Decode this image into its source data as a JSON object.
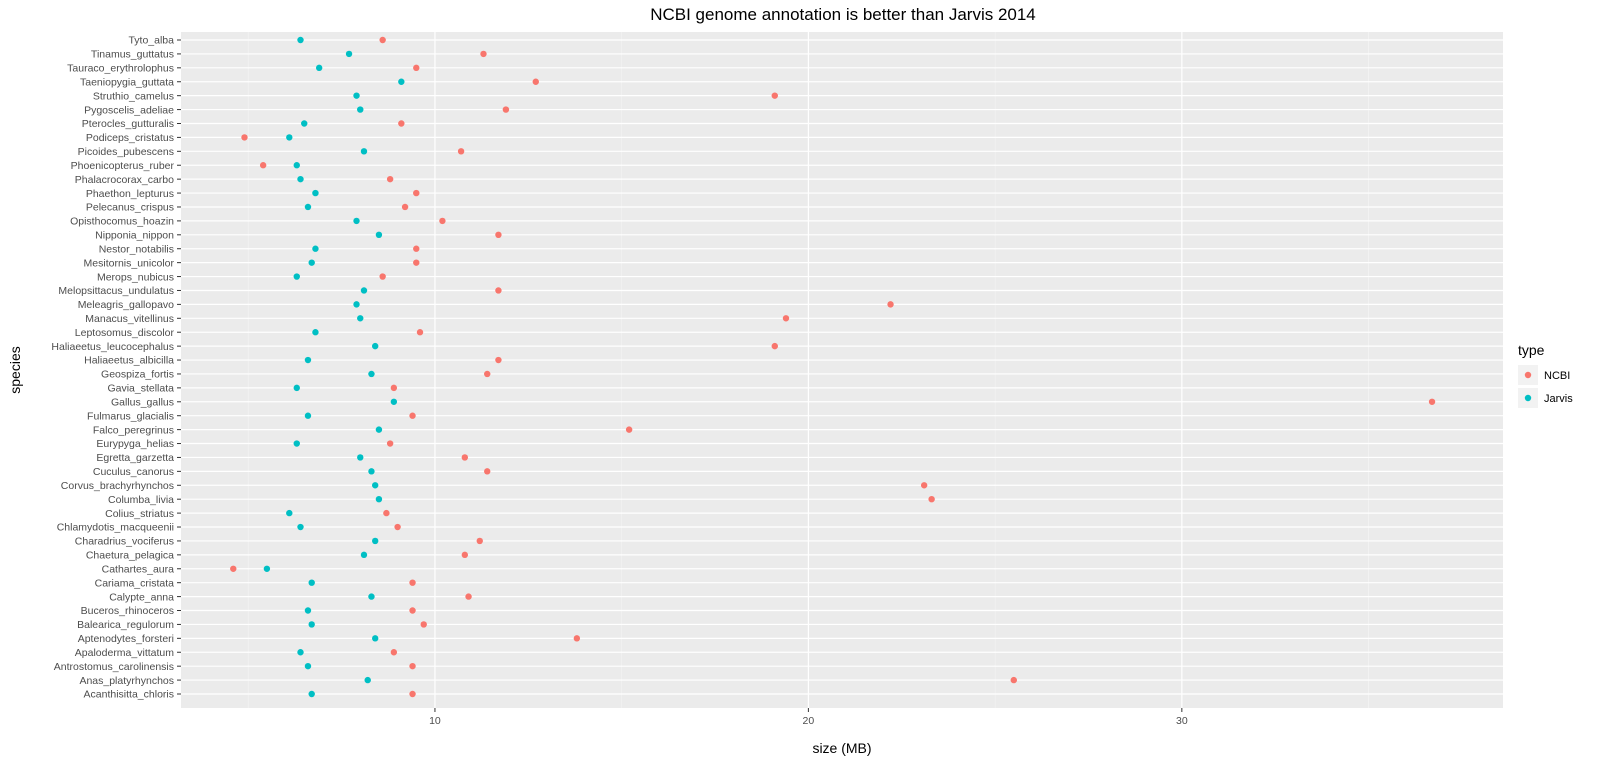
{
  "chart_data": {
    "type": "scatter",
    "title": "NCBI genome annotation is better than Jarvis 2014",
    "xlabel": "size (MB)",
    "ylabel": "species",
    "xlim": [
      3.2,
      38.6
    ],
    "x_ticks": [
      10,
      20,
      30
    ],
    "x_tick_labels": [
      "10",
      "20",
      "30"
    ],
    "grid": true,
    "legend": {
      "title": "type",
      "position": "right",
      "entries": [
        {
          "name": "NCBI",
          "color": "#F8766D"
        },
        {
          "name": "Jarvis",
          "color": "#00BFC4"
        }
      ]
    },
    "categories": [
      "Tyto_alba",
      "Tinamus_guttatus",
      "Tauraco_erythrolophus",
      "Taeniopygia_guttata",
      "Struthio_camelus",
      "Pygoscelis_adeliae",
      "Pterocles_gutturalis",
      "Podiceps_cristatus",
      "Picoides_pubescens",
      "Phoenicopterus_ruber",
      "Phalacrocorax_carbo",
      "Phaethon_lepturus",
      "Pelecanus_crispus",
      "Opisthocomus_hoazin",
      "Nipponia_nippon",
      "Nestor_notabilis",
      "Mesitornis_unicolor",
      "Merops_nubicus",
      "Melopsittacus_undulatus",
      "Meleagris_gallopavo",
      "Manacus_vitellinus",
      "Leptosomus_discolor",
      "Haliaeetus_leucocephalus",
      "Haliaeetus_albicilla",
      "Geospiza_fortis",
      "Gavia_stellata",
      "Gallus_gallus",
      "Fulmarus_glacialis",
      "Falco_peregrinus",
      "Eurypyga_helias",
      "Egretta_garzetta",
      "Cuculus_canorus",
      "Corvus_brachyrhynchos",
      "Columba_livia",
      "Colius_striatus",
      "Chlamydotis_macqueenii",
      "Charadrius_vociferus",
      "Chaetura_pelagica",
      "Cathartes_aura",
      "Cariama_cristata",
      "Calypte_anna",
      "Buceros_rhinoceros",
      "Balearica_regulorum",
      "Aptenodytes_forsteri",
      "Apaloderma_vittatum",
      "Antrostomus_carolinensis",
      "Anas_platyrhynchos",
      "Acanthisitta_chloris"
    ],
    "series": [
      {
        "name": "NCBI",
        "color": "#F8766D",
        "values": [
          8.6,
          11.3,
          9.5,
          12.7,
          19.1,
          11.9,
          9.1,
          4.9,
          10.7,
          5.4,
          8.8,
          9.5,
          9.2,
          10.2,
          11.7,
          9.5,
          9.5,
          8.6,
          11.7,
          22.2,
          19.4,
          9.6,
          19.1,
          11.7,
          11.4,
          8.9,
          36.7,
          9.4,
          15.2,
          8.8,
          10.8,
          11.4,
          23.1,
          23.3,
          8.7,
          9.0,
          11.2,
          10.8,
          4.6,
          9.4,
          10.9,
          9.4,
          9.7,
          13.8,
          8.9,
          9.4,
          25.5,
          9.4
        ]
      },
      {
        "name": "Jarvis",
        "color": "#00BFC4",
        "values": [
          6.4,
          7.7,
          6.9,
          9.1,
          7.9,
          8.0,
          6.5,
          6.1,
          8.1,
          6.3,
          6.4,
          6.8,
          6.6,
          7.9,
          8.5,
          6.8,
          6.7,
          6.3,
          8.1,
          7.9,
          8.0,
          6.8,
          8.4,
          6.6,
          8.3,
          6.3,
          8.9,
          6.6,
          8.5,
          6.3,
          8.0,
          8.3,
          8.4,
          8.5,
          6.1,
          6.4,
          8.4,
          8.1,
          5.5,
          6.7,
          8.3,
          6.6,
          6.7,
          8.4,
          6.4,
          6.6,
          8.2,
          6.7
        ]
      }
    ]
  }
}
